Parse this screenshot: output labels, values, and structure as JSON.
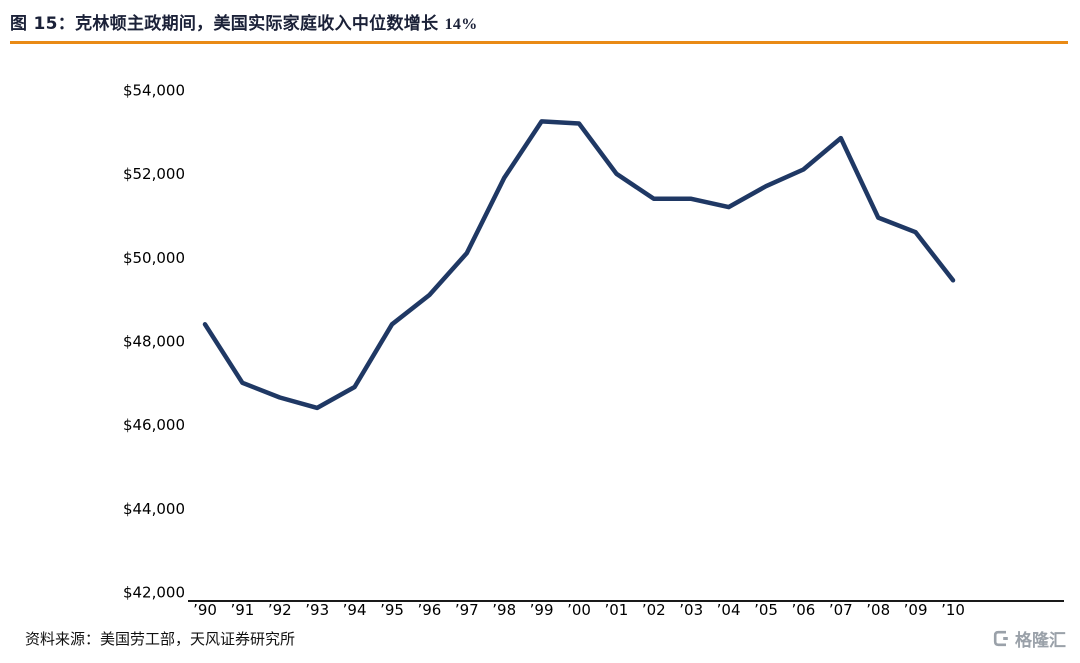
{
  "header": {
    "title_prefix": "图 15：",
    "title_main": "克林顿主政期间，美国实际家庭收入中位数增长",
    "title_suffix": "14%"
  },
  "chart_data": {
    "type": "line",
    "title": "克林顿主政期间，美国实际家庭收入中位数增长 14%",
    "x": [
      "’90",
      "’91",
      "’92",
      "’93",
      "’94",
      "’95",
      "’96",
      "’97",
      "’98",
      "’99",
      "’00",
      "’01",
      "’02",
      "’03",
      "’04",
      "’05",
      "’06",
      "’07",
      "’08",
      "’09",
      "’10"
    ],
    "values": [
      48400,
      47000,
      46650,
      46400,
      46900,
      48400,
      49100,
      50100,
      51900,
      53250,
      53200,
      52000,
      51400,
      51400,
      51200,
      51700,
      52100,
      52850,
      50950,
      50600,
      49450
    ],
    "ylim": [
      42000,
      54000
    ],
    "ytick_step": 2000,
    "ytick_labels": [
      "$42,000",
      "$44,000",
      "$46,000",
      "$48,000",
      "$50,000",
      "$52,000",
      "$54,000"
    ],
    "xlabel": "",
    "ylabel": "",
    "grid": false,
    "legend_position": "none",
    "line_color": "#1F3864",
    "axis_color": "#1a1a1a"
  },
  "footer": {
    "source": "资料来源：美国劳工部，天风证券研究所",
    "logo_text": "格隆汇"
  },
  "colors": {
    "accent_orange": "#E98A15",
    "line_navy": "#1F3864",
    "title_dark": "#1B2138",
    "logo_grey": "#9AA1A9"
  }
}
